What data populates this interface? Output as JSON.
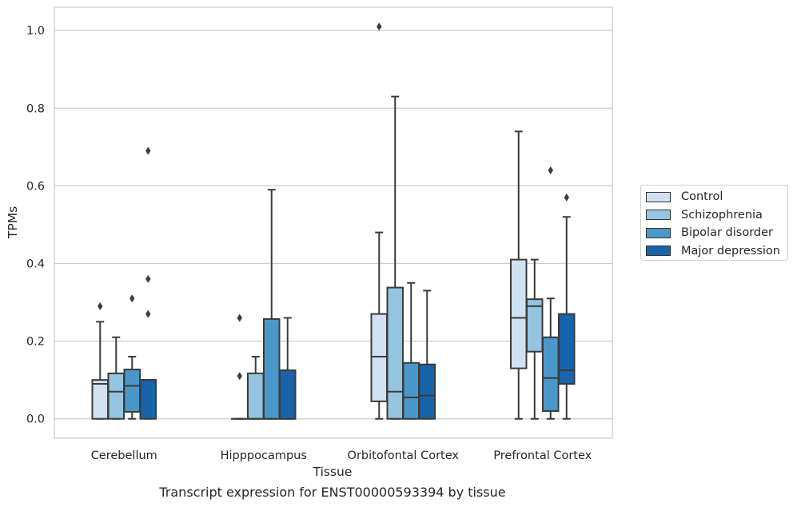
{
  "chart_data": {
    "type": "box",
    "title": "",
    "caption": "Transcript expression for ENST00000593394 by tissue",
    "xlabel": "Tissue",
    "ylabel": "TPMs",
    "ylim": [
      -0.05,
      1.06
    ],
    "yticks": [
      0.0,
      0.2,
      0.4,
      0.6,
      0.8,
      1.0
    ],
    "ytick_labels": [
      "0.0",
      "0.2",
      "0.4",
      "0.6",
      "0.8",
      "1.0"
    ],
    "grid": "y",
    "legend_position": "outside-right",
    "categories": [
      "Cerebellum",
      "Hipppocampus",
      "Orbitofontal Cortex",
      "Prefrontal Cortex"
    ],
    "series": [
      {
        "name": "Control",
        "color": "#d0e1f2",
        "boxes": [
          {
            "q1": 0.0,
            "median": 0.09,
            "q3": 0.1,
            "whisker_low": 0.0,
            "whisker_high": 0.25,
            "outliers": [
              0.29
            ]
          },
          {
            "q1": 0.0,
            "median": 0.0,
            "q3": 0.0,
            "whisker_low": 0.0,
            "whisker_high": 0.0,
            "outliers": [
              0.11,
              0.26
            ]
          },
          {
            "q1": 0.045,
            "median": 0.16,
            "q3": 0.27,
            "whisker_low": 0.0,
            "whisker_high": 0.48,
            "outliers": [
              1.01
            ]
          },
          {
            "q1": 0.13,
            "median": 0.26,
            "q3": 0.41,
            "whisker_low": 0.0,
            "whisker_high": 0.74,
            "outliers": []
          }
        ]
      },
      {
        "name": "Schizophrenia",
        "color": "#94c4df",
        "boxes": [
          {
            "q1": 0.0,
            "median": 0.07,
            "q3": 0.117,
            "whisker_low": 0.0,
            "whisker_high": 0.21,
            "outliers": []
          },
          {
            "q1": 0.0,
            "median": 0.0,
            "q3": 0.117,
            "whisker_low": 0.0,
            "whisker_high": 0.16,
            "outliers": []
          },
          {
            "q1": 0.0,
            "median": 0.07,
            "q3": 0.338,
            "whisker_low": 0.0,
            "whisker_high": 0.83,
            "outliers": []
          },
          {
            "q1": 0.173,
            "median": 0.29,
            "q3": 0.308,
            "whisker_low": 0.0,
            "whisker_high": 0.41,
            "outliers": []
          }
        ]
      },
      {
        "name": "Bipolar disorder",
        "color": "#4a98c9",
        "boxes": [
          {
            "q1": 0.018,
            "median": 0.085,
            "q3": 0.127,
            "whisker_low": 0.0,
            "whisker_high": 0.16,
            "outliers": [
              0.31
            ]
          },
          {
            "q1": 0.0,
            "median": 0.0,
            "q3": 0.257,
            "whisker_low": 0.0,
            "whisker_high": 0.59,
            "outliers": []
          },
          {
            "q1": 0.0,
            "median": 0.055,
            "q3": 0.144,
            "whisker_low": 0.0,
            "whisker_high": 0.35,
            "outliers": []
          },
          {
            "q1": 0.02,
            "median": 0.105,
            "q3": 0.21,
            "whisker_low": 0.0,
            "whisker_high": 0.31,
            "outliers": [
              0.64
            ]
          }
        ]
      },
      {
        "name": "Major depression",
        "color": "#1764ab",
        "boxes": [
          {
            "q1": 0.0,
            "median": 0.1,
            "q3": 0.1,
            "whisker_low": 0.0,
            "whisker_high": 0.1,
            "outliers": [
              0.27,
              0.36,
              0.69
            ]
          },
          {
            "q1": 0.0,
            "median": 0.0,
            "q3": 0.125,
            "whisker_low": 0.0,
            "whisker_high": 0.26,
            "outliers": []
          },
          {
            "q1": 0.0,
            "median": 0.06,
            "q3": 0.14,
            "whisker_low": 0.0,
            "whisker_high": 0.33,
            "outliers": []
          },
          {
            "q1": 0.09,
            "median": 0.125,
            "q3": 0.27,
            "whisker_low": 0.0,
            "whisker_high": 0.52,
            "outliers": [
              0.57
            ]
          }
        ]
      }
    ]
  }
}
